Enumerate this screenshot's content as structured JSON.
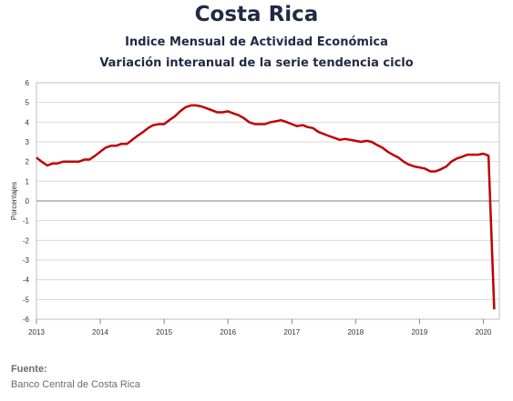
{
  "header": {
    "country": "Costa Rica",
    "subtitle1": "Indice Mensual de  Actividad Económica",
    "subtitle2": "Variación interanual de la serie tendencia ciclo"
  },
  "footer": {
    "label": "Fuente:",
    "source": "Banco Central de Costa Rica"
  },
  "chart_data": {
    "type": "line",
    "title": "Costa Rica",
    "ylabel": "Porcentajes",
    "xlabel": "",
    "ylim": [
      -6,
      6
    ],
    "yticks": [
      6,
      5,
      4,
      3,
      2,
      1,
      0,
      -1,
      -2,
      -3,
      -4,
      -5,
      -6
    ],
    "xlim": [
      2013.0,
      2020.25
    ],
    "xticks": [
      "2013",
      "2014",
      "2015",
      "2016",
      "2017",
      "2018",
      "2019",
      "2020"
    ],
    "grid": true,
    "line_color": "#c00000",
    "series": [
      {
        "name": "",
        "x": [
          2013.0,
          2013.08,
          2013.17,
          2013.25,
          2013.33,
          2013.42,
          2013.5,
          2013.58,
          2013.67,
          2013.75,
          2013.83,
          2013.92,
          2014.0,
          2014.08,
          2014.17,
          2014.25,
          2014.33,
          2014.42,
          2014.5,
          2014.58,
          2014.67,
          2014.75,
          2014.83,
          2014.92,
          2015.0,
          2015.08,
          2015.17,
          2015.25,
          2015.33,
          2015.42,
          2015.5,
          2015.58,
          2015.67,
          2015.75,
          2015.83,
          2015.92,
          2016.0,
          2016.08,
          2016.17,
          2016.25,
          2016.33,
          2016.42,
          2016.5,
          2016.58,
          2016.67,
          2016.75,
          2016.83,
          2016.92,
          2017.0,
          2017.08,
          2017.17,
          2017.25,
          2017.33,
          2017.42,
          2017.5,
          2017.58,
          2017.67,
          2017.75,
          2017.83,
          2017.92,
          2018.0,
          2018.08,
          2018.17,
          2018.25,
          2018.33,
          2018.42,
          2018.5,
          2018.58,
          2018.67,
          2018.75,
          2018.83,
          2018.92,
          2019.0,
          2019.08,
          2019.17,
          2019.25,
          2019.33,
          2019.42,
          2019.5,
          2019.58,
          2019.67,
          2019.75,
          2019.83,
          2019.92,
          2020.0,
          2020.08,
          2020.17
        ],
        "values": [
          2.2,
          2.0,
          1.8,
          1.9,
          1.9,
          2.0,
          2.0,
          2.0,
          2.0,
          2.1,
          2.1,
          2.3,
          2.5,
          2.7,
          2.8,
          2.8,
          2.9,
          2.9,
          3.1,
          3.3,
          3.5,
          3.7,
          3.85,
          3.9,
          3.9,
          4.1,
          4.3,
          4.55,
          4.75,
          4.85,
          4.85,
          4.8,
          4.7,
          4.6,
          4.5,
          4.5,
          4.55,
          4.45,
          4.35,
          4.2,
          4.0,
          3.9,
          3.9,
          3.9,
          4.0,
          4.05,
          4.1,
          4.0,
          3.9,
          3.8,
          3.85,
          3.75,
          3.7,
          3.5,
          3.4,
          3.3,
          3.2,
          3.1,
          3.15,
          3.1,
          3.05,
          3.0,
          3.05,
          3.0,
          2.85,
          2.7,
          2.5,
          2.35,
          2.2,
          2.0,
          1.85,
          1.75,
          1.7,
          1.65,
          1.5,
          1.5,
          1.6,
          1.75,
          2.0,
          2.15,
          2.25,
          2.35,
          2.35,
          2.35,
          2.4,
          2.3,
          -5.5
        ]
      }
    ]
  }
}
